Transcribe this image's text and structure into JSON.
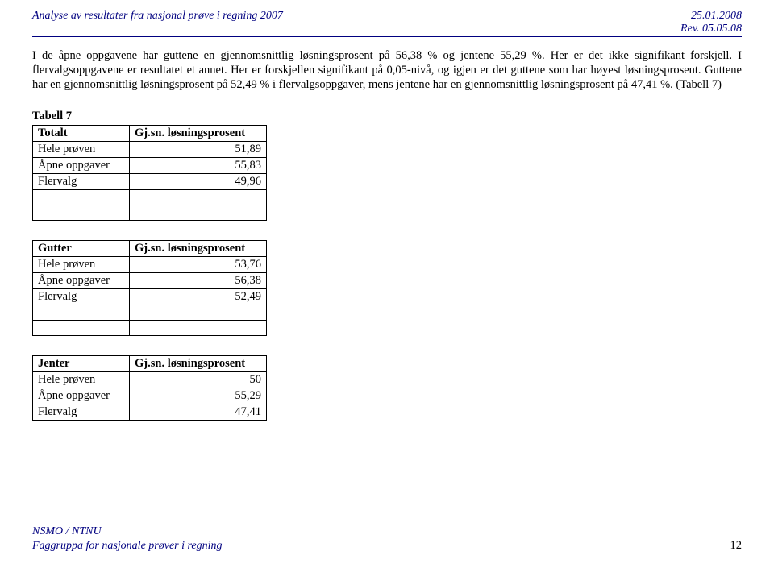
{
  "header": {
    "title_left": "Analyse av resultater fra nasjonal prøve i regning 2007",
    "date": "25.01.2008",
    "rev": "Rev. 05.05.08"
  },
  "paragraph": "I de åpne oppgavene har guttene en gjennomsnittlig løsningsprosent på 56,38 % og jentene 55,29 %. Her er det ikke signifikant forskjell. I flervalgsoppgavene er resultatet et annet. Her er forskjellen signifikant på 0,05-nivå, og igjen er det guttene som har høyest løsningsprosent. Guttene har en gjennomsnittlig løsningsprosent på 52,49 % i flervalgsoppgaver, mens jentene har en gjennomsnittlig løsningsprosent på 47,41 %. (Tabell 7)",
  "tabell_label": "Tabell 7",
  "tables": {
    "totalt": {
      "head_a": "Totalt",
      "head_b": "Gj.sn. løsningsprosent",
      "rows": [
        {
          "label": "Hele prøven",
          "value": "51,89"
        },
        {
          "label": "Åpne oppgaver",
          "value": "55,83"
        },
        {
          "label": "Flervalg",
          "value": "49,96"
        }
      ]
    },
    "gutter": {
      "head_a": "Gutter",
      "head_b": "Gj.sn. løsningsprosent",
      "rows": [
        {
          "label": "Hele prøven",
          "value": "53,76"
        },
        {
          "label": "Åpne oppgaver",
          "value": "56,38"
        },
        {
          "label": "Flervalg",
          "value": "52,49"
        }
      ]
    },
    "jenter": {
      "head_a": "Jenter",
      "head_b": "Gj.sn. løsningsprosent",
      "rows": [
        {
          "label": "Hele prøven",
          "value": "50"
        },
        {
          "label": "Åpne oppgaver",
          "value": "55,29"
        },
        {
          "label": "Flervalg",
          "value": "47,41"
        }
      ]
    }
  },
  "footer": {
    "org": "NSMO / NTNU",
    "group": "Faggruppa for nasjonale prøver i regning",
    "page": "12"
  }
}
